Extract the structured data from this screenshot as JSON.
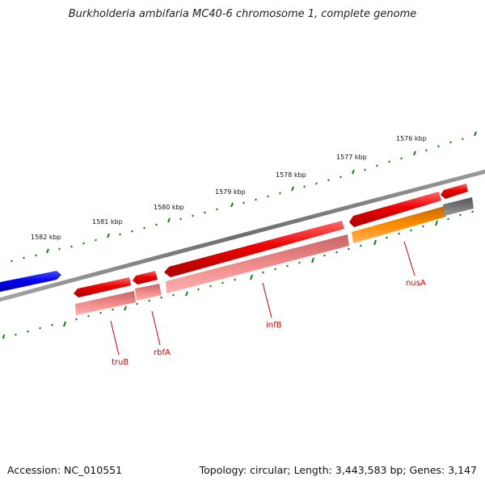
{
  "title": "Burkholderia ambifaria MC40-6 chromosome 1, complete genome",
  "footer": {
    "accession": "Accession: NC_010551",
    "summary": "Topology: circular; Length: 3,443,583 bp; Genes: 3,147"
  },
  "scale_labels": [
    "1582 kbp",
    "1581 kbp",
    "1580 kbp",
    "1579 kbp",
    "1578 kbp",
    "1577 kbp",
    "1576 kbp"
  ],
  "gene_labels": [
    "truB",
    "rbfA",
    "infB",
    "nusA"
  ],
  "colors": {
    "backbone": "#777777",
    "tick": "#1a7a1a",
    "gene_forward": "#0000ee",
    "gene_reverse": "#ee0000",
    "gene_feature": "#f08a8a",
    "gene_feature_alt": "#ff8c00",
    "gene_feature_gray": "#6f6f6f",
    "label": "#cc0000"
  }
}
